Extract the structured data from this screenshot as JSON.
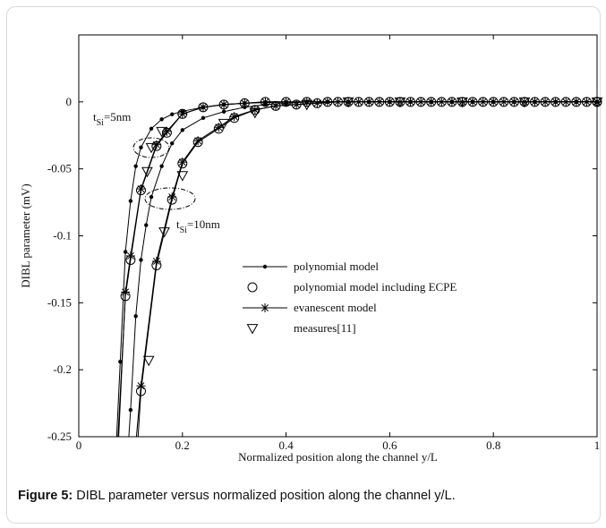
{
  "caption": {
    "label": "Figure 5:",
    "text": " DIBL parameter versus normalized position along the channel y/L."
  },
  "chart_data": {
    "type": "line",
    "xlabel": "Normalized position along the channel y/L",
    "ylabel": "DIBL parameter (mV)",
    "xlim": [
      0,
      1
    ],
    "ylim": [
      -0.25,
      0.05
    ],
    "x_ticks": [
      "0",
      "0.2",
      "0.4",
      "0.6",
      "0.8",
      "1"
    ],
    "y_ticks": [
      "0",
      "-0.05",
      "-0.1",
      "-0.15",
      "-0.2",
      "-0.25"
    ],
    "grid": false,
    "legend_position": "center-right",
    "series": [
      {
        "name": "polynomial model",
        "marker": "dot",
        "group": "tSi=5nm",
        "x": [
          0.0731,
          0.08,
          0.09,
          0.1,
          0.11,
          0.12,
          0.14,
          0.16,
          0.18,
          0.2,
          0.24,
          0.28,
          0.32,
          0.36,
          0.4,
          0.44,
          0.48,
          0.52,
          0.56,
          0.6,
          0.64,
          0.68,
          0.72,
          0.76,
          0.8,
          0.84,
          0.88,
          0.92,
          0.96,
          1.0
        ],
        "y": [
          -0.25,
          -0.194,
          -0.112,
          -0.074,
          -0.048,
          -0.034,
          -0.02,
          -0.013,
          -0.0093,
          -0.007,
          -0.004,
          -0.002,
          -0.001,
          -0.0005,
          -0.0003,
          0,
          0,
          0,
          0,
          0,
          0,
          0,
          0,
          0,
          0,
          0,
          0,
          0,
          0,
          0
        ]
      },
      {
        "name": "polynomial model including ECPE",
        "marker": "circle",
        "group": "tSi=5nm",
        "x": [
          0.0756,
          0.09,
          0.1,
          0.12,
          0.15,
          0.17,
          0.2,
          0.24,
          0.28,
          0.32,
          0.36,
          0.4,
          0.44,
          0.48,
          0.52,
          0.56,
          0.6,
          0.64,
          0.68,
          0.72,
          0.76,
          0.8,
          0.84,
          0.88,
          0.92,
          0.96,
          1.0
        ],
        "y": [
          -0.25,
          -0.145,
          -0.118,
          -0.066,
          -0.033,
          -0.023,
          -0.009,
          -0.004,
          -0.002,
          -0.001,
          0,
          0,
          0,
          0,
          0,
          0,
          0,
          0,
          0,
          0,
          0,
          0,
          0,
          0,
          0,
          0,
          0
        ]
      },
      {
        "name": "evanescent model",
        "marker": "asterisk",
        "group": "tSi=5nm",
        "x": [
          0.0769,
          0.09,
          0.1,
          0.12,
          0.15,
          0.17,
          0.2,
          0.24,
          0.28,
          0.32,
          0.36,
          0.4,
          0.44,
          0.48,
          0.52,
          0.56,
          0.6,
          0.64,
          0.68,
          0.72,
          0.76,
          0.8,
          0.84,
          0.88,
          0.92,
          0.96,
          1.0
        ],
        "y": [
          -0.25,
          -0.142,
          -0.115,
          -0.065,
          -0.032,
          -0.022,
          -0.009,
          -0.004,
          -0.002,
          -0.001,
          0,
          0,
          0,
          0,
          0,
          0,
          0,
          0,
          0,
          0,
          0,
          0,
          0,
          0,
          0,
          0,
          0
        ]
      },
      {
        "name": "polynomial model",
        "marker": "dot",
        "group": "tSi=10nm",
        "x": [
          0.0966,
          0.1,
          0.11,
          0.12,
          0.13,
          0.14,
          0.16,
          0.18,
          0.2,
          0.24,
          0.28,
          0.32,
          0.36,
          0.4,
          0.44,
          0.48,
          0.52,
          0.56,
          0.6,
          0.64,
          0.68,
          0.72,
          0.76,
          0.8,
          0.84,
          0.88,
          0.92,
          0.96,
          1.0
        ],
        "y": [
          -0.25,
          -0.23,
          -0.16,
          -0.118,
          -0.092,
          -0.071,
          -0.048,
          -0.031,
          -0.021,
          -0.012,
          -0.0073,
          -0.004,
          -0.002,
          -0.001,
          0,
          0,
          0,
          0,
          0,
          0,
          0,
          0,
          0,
          0,
          0,
          0,
          0,
          0,
          0
        ]
      },
      {
        "name": "polynomial model including ECPE",
        "marker": "circle",
        "group": "tSi=10nm",
        "x": [
          0.1145,
          0.12,
          0.15,
          0.18,
          0.2,
          0.23,
          0.27,
          0.3,
          0.34,
          0.38,
          0.42,
          0.46,
          0.5,
          0.54,
          0.58,
          0.62,
          0.66,
          0.7,
          0.74,
          0.78,
          0.82,
          0.86,
          0.9,
          0.94,
          0.98,
          1.0
        ],
        "y": [
          -0.25,
          -0.216,
          -0.122,
          -0.073,
          -0.046,
          -0.03,
          -0.02,
          -0.012,
          -0.006,
          -0.003,
          -0.002,
          -0.001,
          0,
          0,
          0,
          0,
          0,
          0,
          0,
          0,
          0,
          0,
          0,
          0,
          0,
          0
        ]
      },
      {
        "name": "evanescent model",
        "marker": "asterisk",
        "group": "tSi=10nm",
        "x": [
          0.1113,
          0.12,
          0.15,
          0.18,
          0.2,
          0.23,
          0.27,
          0.3,
          0.34,
          0.38,
          0.42,
          0.46,
          0.5,
          0.54,
          0.58,
          0.62,
          0.66,
          0.7,
          0.74,
          0.78,
          0.82,
          0.86,
          0.9,
          0.94,
          0.98,
          1.0
        ],
        "y": [
          -0.25,
          -0.212,
          -0.119,
          -0.071,
          -0.045,
          -0.029,
          -0.019,
          -0.011,
          -0.006,
          -0.003,
          -0.002,
          -0.001,
          0,
          0,
          0,
          0,
          0,
          0,
          0,
          0,
          0,
          0,
          0,
          0,
          0,
          0
        ]
      },
      {
        "name": "measures[11]",
        "marker": "triangle",
        "group": "all",
        "x": [
          0.135,
          0.132,
          0.165,
          0.2,
          0.28,
          0.34,
          0.44,
          0.52,
          0.62,
          0.74,
          0.86,
          1.0,
          0.14,
          0.16
        ],
        "y": [
          -0.193,
          -0.052,
          -0.097,
          -0.055,
          -0.016,
          -0.008,
          -0.002,
          0,
          0,
          0,
          0,
          0,
          -0.034,
          -0.022
        ]
      }
    ],
    "annotations": [
      {
        "base": "t",
        "sub": "Si",
        "rest": "=5nm"
      },
      {
        "base": "t",
        "sub": "Si",
        "rest": "=10nm"
      }
    ]
  }
}
